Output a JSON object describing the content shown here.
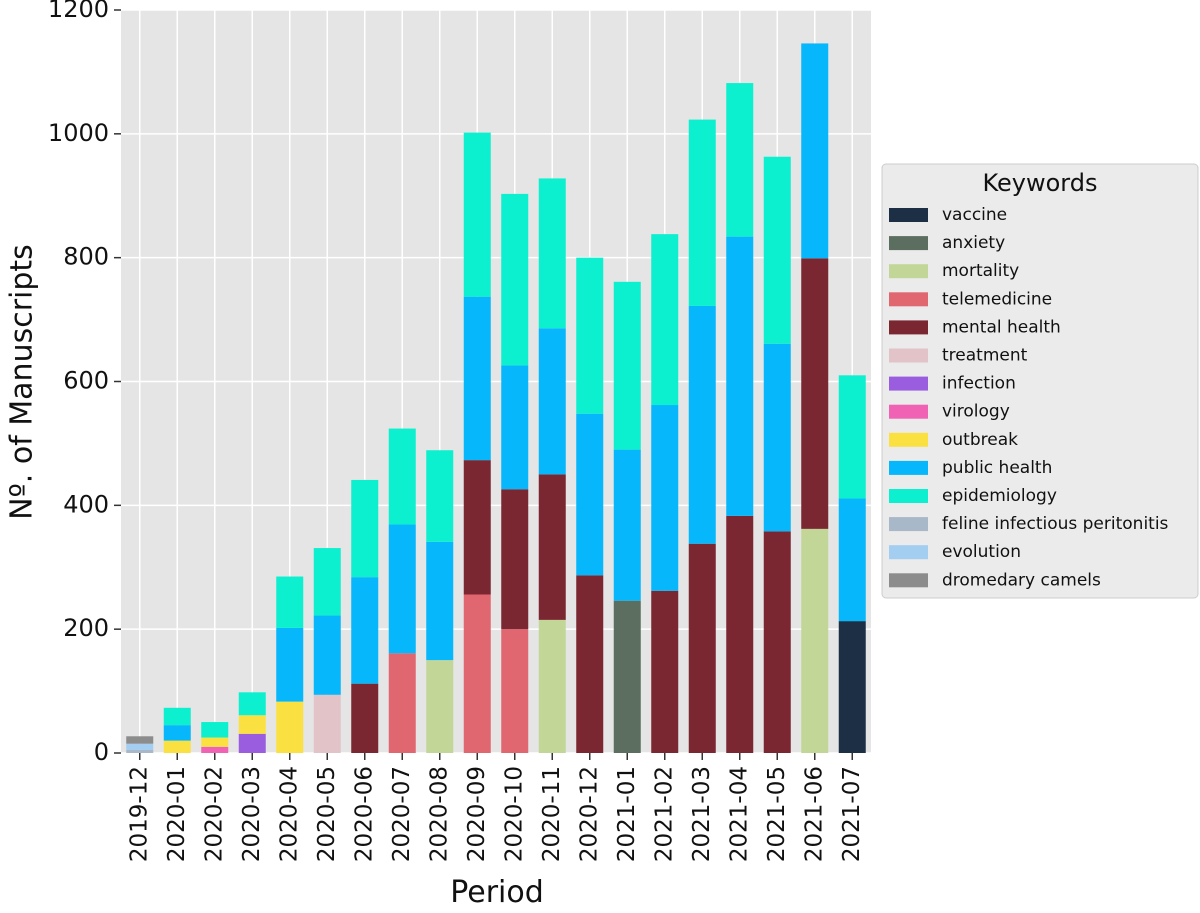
{
  "chart_data": {
    "type": "bar",
    "stacked": true,
    "xlabel": "Period",
    "ylabel": "Nº. of Manuscripts",
    "ylim": [
      0,
      1200
    ],
    "yticks": [
      "0",
      "200",
      "400",
      "600",
      "800",
      "1000",
      "1200"
    ],
    "grid": true,
    "legend_position": "right",
    "legend_title": "Keywords",
    "categories": [
      "2019-12",
      "2020-01",
      "2020-02",
      "2020-03",
      "2020-04",
      "2020-05",
      "2020-06",
      "2020-07",
      "2020-08",
      "2020-09",
      "2020-10",
      "2020-11",
      "2020-12",
      "2021-01",
      "2021-02",
      "2021-03",
      "2021-04",
      "2021-05",
      "2021-06",
      "2021-07"
    ],
    "series": [
      {
        "name": "vaccine",
        "color": "#1c2f44",
        "values": [
          0,
          0,
          0,
          0,
          0,
          0,
          0,
          0,
          0,
          0,
          0,
          0,
          0,
          0,
          0,
          0,
          0,
          0,
          0,
          213
        ]
      },
      {
        "name": "anxiety",
        "color": "#5b6e60",
        "values": [
          0,
          0,
          0,
          0,
          0,
          0,
          0,
          0,
          0,
          0,
          0,
          0,
          0,
          246,
          0,
          0,
          0,
          0,
          0,
          0
        ]
      },
      {
        "name": "mortality",
        "color": "#c2d698",
        "values": [
          0,
          0,
          0,
          0,
          0,
          0,
          0,
          0,
          150,
          0,
          0,
          215,
          0,
          0,
          0,
          0,
          0,
          0,
          362,
          0
        ]
      },
      {
        "name": "telemedicine",
        "color": "#e06670",
        "values": [
          0,
          0,
          0,
          0,
          0,
          0,
          0,
          161,
          0,
          256,
          200,
          0,
          0,
          0,
          0,
          0,
          0,
          0,
          0,
          0
        ]
      },
      {
        "name": "mental health",
        "color": "#7a2731",
        "values": [
          0,
          0,
          0,
          0,
          0,
          0,
          112,
          0,
          0,
          217,
          226,
          235,
          287,
          0,
          262,
          338,
          383,
          358,
          437,
          0
        ]
      },
      {
        "name": "treatment",
        "color": "#e2c4c8",
        "values": [
          0,
          0,
          0,
          0,
          0,
          94,
          0,
          0,
          0,
          0,
          0,
          0,
          0,
          0,
          0,
          0,
          0,
          0,
          0,
          0
        ]
      },
      {
        "name": "infection",
        "color": "#9a5de0",
        "values": [
          0,
          0,
          0,
          31,
          0,
          0,
          0,
          0,
          0,
          0,
          0,
          0,
          0,
          0,
          0,
          0,
          0,
          0,
          0,
          0
        ]
      },
      {
        "name": "virology",
        "color": "#f062b4",
        "values": [
          0,
          0,
          10,
          0,
          0,
          0,
          0,
          0,
          0,
          0,
          0,
          0,
          0,
          0,
          0,
          0,
          0,
          0,
          0,
          0
        ]
      },
      {
        "name": "outbreak",
        "color": "#fbe042",
        "values": [
          0,
          20,
          15,
          30,
          83,
          0,
          0,
          0,
          0,
          0,
          0,
          0,
          0,
          0,
          0,
          0,
          0,
          0,
          0,
          0
        ]
      },
      {
        "name": "public health",
        "color": "#06b7fb",
        "values": [
          0,
          25,
          0,
          0,
          119,
          128,
          172,
          208,
          191,
          264,
          200,
          236,
          261,
          244,
          300,
          384,
          451,
          303,
          347,
          198
        ]
      },
      {
        "name": "epidemiology",
        "color": "#0df0cf",
        "values": [
          0,
          28,
          25,
          37,
          83,
          109,
          157,
          155,
          148,
          265,
          277,
          242,
          252,
          271,
          276,
          301,
          248,
          302,
          0,
          199
        ]
      },
      {
        "name": "feline infectious peritonitis",
        "color": "#a8b8c8",
        "values": [
          5,
          0,
          0,
          0,
          0,
          0,
          0,
          0,
          0,
          0,
          0,
          0,
          0,
          0,
          0,
          0,
          0,
          0,
          0,
          0
        ]
      },
      {
        "name": "evolution",
        "color": "#a3cdf1",
        "values": [
          10,
          0,
          0,
          0,
          0,
          0,
          0,
          0,
          0,
          0,
          0,
          0,
          0,
          0,
          0,
          0,
          0,
          0,
          0,
          0
        ]
      },
      {
        "name": "dromedary camels",
        "color": "#8c8c8c",
        "values": [
          12,
          0,
          0,
          0,
          0,
          0,
          0,
          0,
          0,
          0,
          0,
          0,
          0,
          0,
          0,
          0,
          0,
          0,
          0,
          0
        ]
      }
    ]
  }
}
